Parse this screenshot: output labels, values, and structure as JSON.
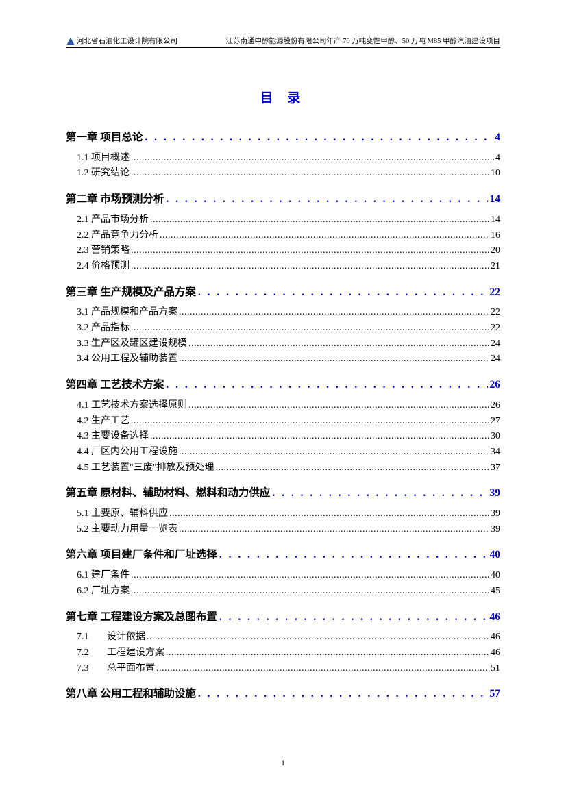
{
  "header": {
    "org": "河北省石油化工设计院有限公司",
    "project": "江苏南通中醇能源股份有限公司年产 70 万吨变性甲醇、50 万吨 M85 甲醇汽油建设项目"
  },
  "title": "目  录",
  "colors": {
    "accent": "#0000cc",
    "text": "#000000",
    "background": "#ffffff"
  },
  "toc": [
    {
      "type": "chapter",
      "label": "第一章  项目总论",
      "page": "4"
    },
    {
      "type": "section",
      "label": "1.1  项目概述",
      "page": "4"
    },
    {
      "type": "section",
      "label": "1.2  研究结论",
      "page": "10"
    },
    {
      "type": "chapter",
      "label": "第二章  市场预测分析",
      "page": "14"
    },
    {
      "type": "section",
      "label": "2.1  产品市场分析",
      "page": "14"
    },
    {
      "type": "section",
      "label": "2.2  产品竞争力分析",
      "page": "16"
    },
    {
      "type": "section",
      "label": "2.3  营销策略",
      "page": "20"
    },
    {
      "type": "section",
      "label": "2.4  价格预测",
      "page": "21"
    },
    {
      "type": "chapter",
      "label": "第三章  生产规模及产品方案",
      "page": "22"
    },
    {
      "type": "section",
      "label": "3.1  产品规模和产品方案",
      "page": "22"
    },
    {
      "type": "section",
      "label": "3.2  产品指标",
      "page": "22"
    },
    {
      "type": "section",
      "label": "3.3  生产区及罐区建设规模",
      "page": "24"
    },
    {
      "type": "section",
      "label": "3.4 公用工程及辅助装置",
      "page": "24"
    },
    {
      "type": "chapter",
      "label": "第四章  工艺技术方案",
      "page": "26"
    },
    {
      "type": "section",
      "label": "4.1  工艺技术方案选择原则",
      "page": "26"
    },
    {
      "type": "section",
      "label": "4.2  生产工艺",
      "page": "27"
    },
    {
      "type": "section",
      "label": "4.3  主要设备选择",
      "page": "30"
    },
    {
      "type": "section",
      "label": "4.4  厂区内公用工程设施",
      "page": "34"
    },
    {
      "type": "section",
      "label": "4.5  工艺装置\"三废\"排放及预处理",
      "page": "37"
    },
    {
      "type": "chapter",
      "label": "第五章  原材料、辅助材料、燃料和动力供应",
      "page": "39"
    },
    {
      "type": "section",
      "label": "5.1  主要原、辅料供应",
      "page": "39"
    },
    {
      "type": "section",
      "label": "5.2  主要动力用量一览表",
      "page": "39"
    },
    {
      "type": "chapter",
      "label": "第六章  项目建厂条件和厂址选择",
      "page": "40"
    },
    {
      "type": "section",
      "label": "6.1  建厂条件",
      "page": "40"
    },
    {
      "type": "section",
      "label": "6.2  厂址方案",
      "page": "45"
    },
    {
      "type": "chapter",
      "label": "第七章  工程建设方案及总图布置",
      "page": "46"
    },
    {
      "type": "section-indent",
      "num": "7.1",
      "label": "设计依据",
      "page": "46"
    },
    {
      "type": "section-indent",
      "num": "7.2",
      "label": "工程建设方案",
      "page": "46"
    },
    {
      "type": "section-indent",
      "num": "7.3",
      "label": "总平面布置",
      "page": "51"
    },
    {
      "type": "chapter",
      "label": "第八章  公用工程和辅助设施",
      "page": "57"
    }
  ],
  "footer": "1"
}
